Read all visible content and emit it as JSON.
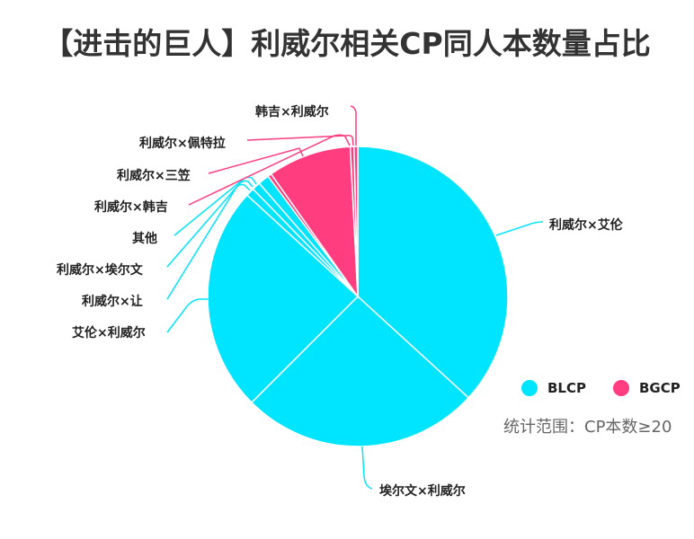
{
  "title": "【进击的巨人】利威尔相关CP同人本数量占比",
  "legend": [
    {
      "label": "BLCP",
      "color": "#00E5FF"
    },
    {
      "label": "BGCP",
      "color": "#FF3D7F"
    }
  ],
  "note": "统计范围：CP本数≥20",
  "chart_data": {
    "type": "pie",
    "title": "【进击的巨人】利威尔相关CP同人本数量占比",
    "start_angle": "12 o'clock, clockwise",
    "categories": [
      "利威尔×艾伦",
      "埃尔文×利威尔",
      "艾伦×利威尔",
      "利威尔×让",
      "利威尔×埃尔文",
      "其他",
      "利威尔×韩吉",
      "利威尔×三笠",
      "利威尔×佩特拉",
      "韩吉×利威尔"
    ],
    "values": [
      36.8,
      25.7,
      24.3,
      0.9,
      0.9,
      1.2,
      0.4,
      9.0,
      0.4,
      0.4
    ],
    "groups": [
      "BLCP",
      "BLCP",
      "BLCP",
      "BLCP",
      "BLCP",
      "BLCP",
      "BGCP",
      "BGCP",
      "BGCP",
      "BGCP"
    ],
    "legend": [
      "BLCP",
      "BGCP"
    ],
    "legend_position": "right-bottom",
    "annotation": "统计范围：CP本数≥20",
    "unit": "percent (estimated)"
  },
  "labels": {
    "l0": "利威尔×艾伦",
    "l1": "埃尔文×利威尔",
    "l2": "艾伦×利威尔",
    "l3": "利威尔×让",
    "l4": "利威尔×埃尔文",
    "l5": "其他",
    "l6": "利威尔×韩吉",
    "l7": "利威尔×三笠",
    "l8": "利威尔×佩特拉",
    "l9": "韩吉×利威尔"
  }
}
